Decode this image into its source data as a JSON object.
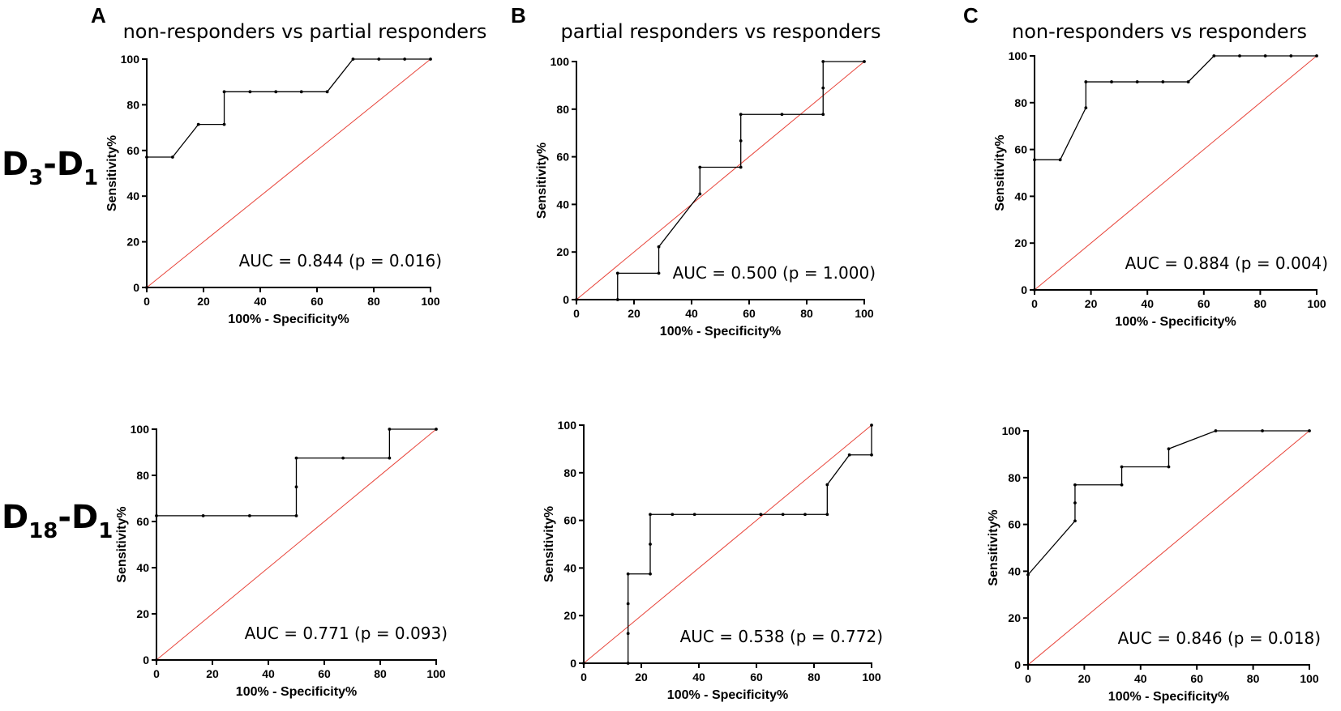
{
  "panel_letters": [
    "A",
    "B",
    "C"
  ],
  "column_titles": [
    "non-responders vs partial responders",
    "partial responders vs responders",
    "non-responders vs responders"
  ],
  "row_labels": [
    {
      "main": "D",
      "sub1": "3",
      "dash": "-D",
      "sub2": "1"
    },
    {
      "main": "D",
      "sub1": "18",
      "dash": "-D",
      "sub2": "1"
    }
  ],
  "colors": {
    "roc": "#000000",
    "reference": "#e8443a"
  },
  "chart_data": [
    {
      "type": "line",
      "row": 0,
      "col": 0,
      "title": "non-responders vs partial responders",
      "xlabel": "100% - Specificity%",
      "ylabel": "Sensitivity%",
      "xlim": [
        0,
        100
      ],
      "ylim": [
        0,
        100
      ],
      "xticks": [
        "0",
        "20",
        "40",
        "60",
        "80",
        "100"
      ],
      "yticks": [
        "0",
        "20",
        "40",
        "60",
        "80",
        "100"
      ],
      "annotation": "AUC = 0.844 (p = 0.016)",
      "series": [
        {
          "name": "ROC",
          "x": [
            0,
            0,
            9.1,
            18.2,
            27.3,
            27.3,
            36.4,
            45.5,
            54.5,
            63.6,
            72.7,
            81.8,
            90.9,
            100
          ],
          "y": [
            0,
            57.1,
            57.1,
            71.4,
            71.4,
            85.7,
            85.7,
            85.7,
            85.7,
            85.7,
            100,
            100,
            100,
            100
          ]
        },
        {
          "name": "Reference",
          "x": [
            0,
            100
          ],
          "y": [
            0,
            100
          ]
        }
      ]
    },
    {
      "type": "line",
      "row": 0,
      "col": 1,
      "title": "partial responders vs responders",
      "xlabel": "100% - Specificity%",
      "ylabel": "Sensitivity%",
      "xlim": [
        0,
        100
      ],
      "ylim": [
        0,
        100
      ],
      "xticks": [
        "0",
        "20",
        "40",
        "60",
        "80",
        "100"
      ],
      "yticks": [
        "0",
        "20",
        "40",
        "60",
        "80",
        "100"
      ],
      "annotation": "AUC = 0.500 (p = 1.000)",
      "series": [
        {
          "name": "ROC",
          "x": [
            0,
            14.3,
            14.3,
            28.6,
            28.6,
            42.9,
            42.9,
            57.1,
            57.1,
            57.1,
            71.4,
            85.7,
            85.7,
            85.7,
            100
          ],
          "y": [
            0,
            0,
            11.1,
            11.1,
            22.2,
            44.4,
            55.6,
            55.6,
            66.7,
            77.8,
            77.8,
            77.8,
            88.9,
            100,
            100
          ]
        },
        {
          "name": "Reference",
          "x": [
            0,
            100
          ],
          "y": [
            0,
            100
          ]
        }
      ]
    },
    {
      "type": "line",
      "row": 0,
      "col": 2,
      "title": "non-responders vs responders",
      "xlabel": "100% - Specificity%",
      "ylabel": "Sensitivity%",
      "xlim": [
        0,
        100
      ],
      "ylim": [
        0,
        100
      ],
      "xticks": [
        "0",
        "20",
        "40",
        "60",
        "80",
        "100"
      ],
      "yticks": [
        "0",
        "20",
        "40",
        "60",
        "80",
        "100"
      ],
      "annotation": "AUC = 0.884 (p = 0.004)",
      "series": [
        {
          "name": "ROC",
          "x": [
            0,
            0,
            9.1,
            18.2,
            18.2,
            27.3,
            36.4,
            45.5,
            54.5,
            63.6,
            72.7,
            81.8,
            90.9,
            100
          ],
          "y": [
            0,
            55.6,
            55.6,
            77.8,
            88.9,
            88.9,
            88.9,
            88.9,
            88.9,
            100,
            100,
            100,
            100,
            100
          ]
        },
        {
          "name": "Reference",
          "x": [
            0,
            100
          ],
          "y": [
            0,
            100
          ]
        }
      ]
    },
    {
      "type": "line",
      "row": 1,
      "col": 0,
      "title": "non-responders vs partial responders",
      "xlabel": "100% - Specificity%",
      "ylabel": "Sensitivity%",
      "xlim": [
        0,
        100
      ],
      "ylim": [
        0,
        100
      ],
      "xticks": [
        "0",
        "20",
        "40",
        "60",
        "80",
        "100"
      ],
      "yticks": [
        "0",
        "20",
        "40",
        "60",
        "80",
        "100"
      ],
      "annotation": "AUC = 0.771 (p = 0.093)",
      "series": [
        {
          "name": "ROC",
          "x": [
            0,
            0,
            16.7,
            33.3,
            50,
            50,
            50,
            66.7,
            83.3,
            83.3,
            100
          ],
          "y": [
            0,
            62.5,
            62.5,
            62.5,
            62.5,
            75,
            87.5,
            87.5,
            87.5,
            100,
            100
          ]
        },
        {
          "name": "Reference",
          "x": [
            0,
            100
          ],
          "y": [
            0,
            100
          ]
        }
      ]
    },
    {
      "type": "line",
      "row": 1,
      "col": 1,
      "title": "partial responders vs responders",
      "xlabel": "100% - Specificity%",
      "ylabel": "Sensitivity%",
      "xlim": [
        0,
        100
      ],
      "ylim": [
        0,
        100
      ],
      "xticks": [
        "0",
        "20",
        "40",
        "60",
        "80",
        "100"
      ],
      "yticks": [
        "0",
        "20",
        "40",
        "60",
        "80",
        "100"
      ],
      "annotation": "AUC = 0.538 (p = 0.772)",
      "series": [
        {
          "name": "ROC",
          "x": [
            0,
            15.4,
            15.4,
            15.4,
            15.4,
            23.1,
            23.1,
            23.1,
            30.8,
            38.5,
            61.5,
            69.2,
            76.9,
            84.6,
            84.6,
            92.3,
            100,
            100
          ],
          "y": [
            0,
            0,
            12.5,
            25,
            37.5,
            37.5,
            50,
            62.5,
            62.5,
            62.5,
            62.5,
            62.5,
            62.5,
            62.5,
            75,
            87.5,
            87.5,
            100
          ]
        },
        {
          "name": "Reference",
          "x": [
            0,
            100
          ],
          "y": [
            0,
            100
          ]
        }
      ]
    },
    {
      "type": "line",
      "row": 1,
      "col": 2,
      "title": "non-responders vs responders",
      "xlabel": "100% - Specificity%",
      "ylabel": "Sensitivity%",
      "xlim": [
        0,
        100
      ],
      "ylim": [
        0,
        100
      ],
      "xticks": [
        "0",
        "20",
        "40",
        "60",
        "80",
        "100"
      ],
      "yticks": [
        "0",
        "20",
        "40",
        "60",
        "80",
        "100"
      ],
      "annotation": "AUC = 0.846 (p = 0.018)",
      "series": [
        {
          "name": "ROC",
          "x": [
            0,
            16.7,
            16.7,
            16.7,
            33.3,
            33.3,
            50,
            50,
            66.7,
            83.3,
            100
          ],
          "y": [
            38.5,
            61.5,
            69.2,
            76.9,
            76.9,
            84.6,
            84.6,
            92.3,
            100,
            100,
            100
          ]
        },
        {
          "name": "Reference",
          "x": [
            0,
            100
          ],
          "y": [
            0,
            100
          ]
        }
      ]
    }
  ]
}
